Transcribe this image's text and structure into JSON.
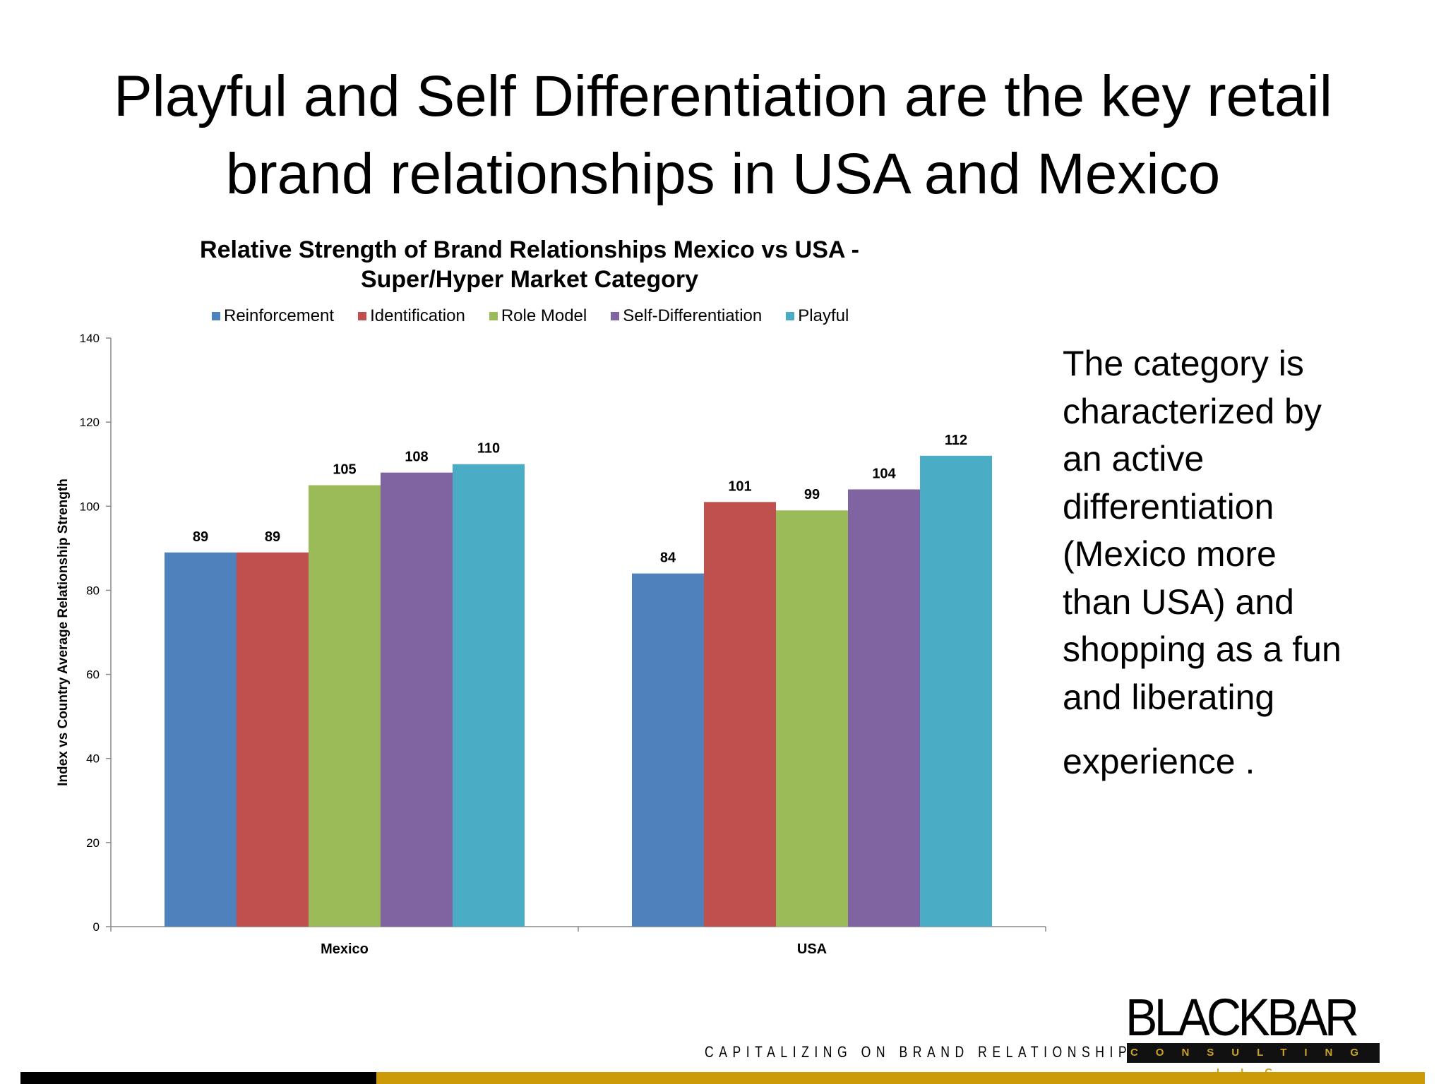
{
  "slide": {
    "title_lines": [
      "Playful and Self Differentiation are the key retail",
      "brand relationships in USA and Mexico"
    ],
    "side_text_lines": [
      "The category is",
      "characterized by",
      "an active",
      "differentiation",
      "(Mexico more",
      "than USA) and",
      "shopping as a fun",
      "and liberating",
      "experience ."
    ],
    "tagline": "CAPITALIZING ON BRAND RELATIONSHIPS.",
    "logo": {
      "name": "BLACKBAR",
      "sub": "CONSULTING LLC"
    },
    "colors": {
      "footer_black": "#000000",
      "footer_gold": "#cc9a06"
    }
  },
  "chart_data": {
    "type": "bar",
    "title_lines": [
      "Relative Strength of Brand Relationships Mexico vs USA  -",
      "Super/Hyper Market Category"
    ],
    "xlabel": "",
    "ylabel": "Index vs Country Average Relationship Strength",
    "ylim": [
      0,
      140
    ],
    "yticks": [
      0,
      20,
      40,
      60,
      80,
      100,
      120,
      140
    ],
    "categories": [
      "Mexico",
      "USA"
    ],
    "legend_position": "top",
    "grid": false,
    "series": [
      {
        "name": "Reinforcement",
        "color": "#4f81bd",
        "values": [
          89,
          84
        ]
      },
      {
        "name": "Identification",
        "color": "#c0504d",
        "values": [
          89,
          101
        ]
      },
      {
        "name": "Role Model",
        "color": "#9bbb59",
        "values": [
          105,
          99
        ]
      },
      {
        "name": "Self-Differentiation",
        "color": "#8064a2",
        "values": [
          108,
          104
        ]
      },
      {
        "name": "Playful",
        "color": "#4bacc6",
        "values": [
          110,
          112
        ]
      }
    ]
  }
}
